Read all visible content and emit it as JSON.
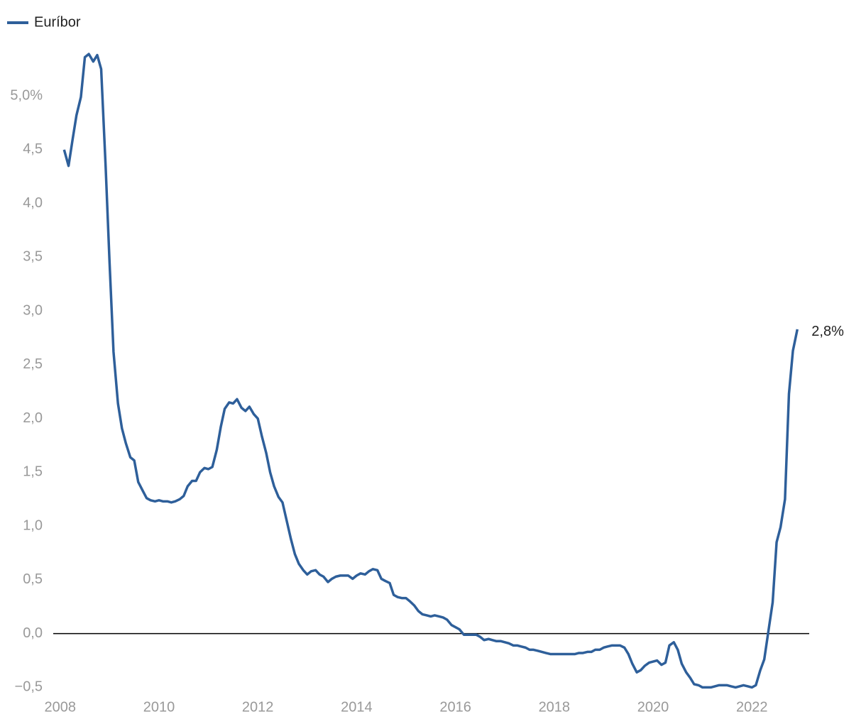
{
  "chart_data": {
    "type": "line",
    "x": [
      2008.08,
      2008.17,
      2008.25,
      2008.33,
      2008.42,
      2008.5,
      2008.58,
      2008.67,
      2008.75,
      2008.83,
      2008.92,
      2009,
      2009.08,
      2009.17,
      2009.25,
      2009.33,
      2009.42,
      2009.5,
      2009.58,
      2009.67,
      2009.75,
      2009.83,
      2009.92,
      2010,
      2010.08,
      2010.17,
      2010.25,
      2010.33,
      2010.42,
      2010.5,
      2010.58,
      2010.67,
      2010.75,
      2010.83,
      2010.92,
      2011,
      2011.08,
      2011.17,
      2011.25,
      2011.33,
      2011.42,
      2011.5,
      2011.58,
      2011.67,
      2011.75,
      2011.83,
      2011.92,
      2012,
      2012.08,
      2012.17,
      2012.25,
      2012.33,
      2012.42,
      2012.5,
      2012.58,
      2012.67,
      2012.75,
      2012.83,
      2012.92,
      2013,
      2013.08,
      2013.17,
      2013.25,
      2013.33,
      2013.42,
      2013.5,
      2013.58,
      2013.67,
      2013.75,
      2013.83,
      2013.92,
      2014,
      2014.08,
      2014.17,
      2014.25,
      2014.33,
      2014.42,
      2014.5,
      2014.58,
      2014.67,
      2014.75,
      2014.83,
      2014.92,
      2015,
      2015.08,
      2015.17,
      2015.25,
      2015.33,
      2015.42,
      2015.5,
      2015.58,
      2015.67,
      2015.75,
      2015.83,
      2015.92,
      2016,
      2016.08,
      2016.17,
      2016.25,
      2016.33,
      2016.42,
      2016.5,
      2016.58,
      2016.67,
      2016.75,
      2016.83,
      2016.92,
      2017,
      2017.08,
      2017.17,
      2017.25,
      2017.33,
      2017.42,
      2017.5,
      2017.58,
      2017.67,
      2017.75,
      2017.83,
      2017.92,
      2018,
      2018.08,
      2018.17,
      2018.25,
      2018.33,
      2018.42,
      2018.5,
      2018.58,
      2018.67,
      2018.75,
      2018.83,
      2018.92,
      2019,
      2019.08,
      2019.17,
      2019.25,
      2019.33,
      2019.42,
      2019.5,
      2019.58,
      2019.67,
      2019.75,
      2019.83,
      2019.92,
      2020,
      2020.08,
      2020.17,
      2020.25,
      2020.33,
      2020.42,
      2020.5,
      2020.58,
      2020.67,
      2020.75,
      2020.83,
      2020.92,
      2021,
      2021.08,
      2021.17,
      2021.25,
      2021.33,
      2021.42,
      2021.5,
      2021.58,
      2021.67,
      2021.75,
      2021.83,
      2021.92,
      2022,
      2022.08,
      2022.17,
      2022.25,
      2022.33,
      2022.42,
      2022.5,
      2022.58,
      2022.67,
      2022.75,
      2022.83,
      2022.92
    ],
    "series": [
      {
        "name": "Euríbor",
        "color": "#2e5f9a",
        "values": [
          4.5,
          4.35,
          4.59,
          4.82,
          4.99,
          5.36,
          5.39,
          5.32,
          5.38,
          5.25,
          4.35,
          3.45,
          2.62,
          2.14,
          1.91,
          1.77,
          1.64,
          1.61,
          1.41,
          1.33,
          1.26,
          1.24,
          1.23,
          1.24,
          1.23,
          1.23,
          1.22,
          1.23,
          1.25,
          1.28,
          1.37,
          1.42,
          1.42,
          1.5,
          1.54,
          1.53,
          1.55,
          1.71,
          1.92,
          2.09,
          2.15,
          2.14,
          2.18,
          2.1,
          2.07,
          2.11,
          2.04,
          2.0,
          1.84,
          1.68,
          1.5,
          1.37,
          1.27,
          1.22,
          1.06,
          0.88,
          0.74,
          0.65,
          0.59,
          0.55,
          0.58,
          0.59,
          0.55,
          0.53,
          0.48,
          0.51,
          0.53,
          0.54,
          0.54,
          0.54,
          0.51,
          0.54,
          0.56,
          0.55,
          0.58,
          0.6,
          0.59,
          0.51,
          0.49,
          0.47,
          0.36,
          0.34,
          0.33,
          0.33,
          0.3,
          0.26,
          0.21,
          0.18,
          0.17,
          0.16,
          0.17,
          0.16,
          0.15,
          0.13,
          0.08,
          0.06,
          0.04,
          -0.01,
          -0.01,
          -0.01,
          -0.01,
          -0.03,
          -0.06,
          -0.05,
          -0.06,
          -0.07,
          -0.07,
          -0.08,
          -0.09,
          -0.11,
          -0.11,
          -0.12,
          -0.13,
          -0.15,
          -0.15,
          -0.16,
          -0.17,
          -0.18,
          -0.19,
          -0.19,
          -0.19,
          -0.19,
          -0.19,
          -0.19,
          -0.19,
          -0.18,
          -0.18,
          -0.17,
          -0.17,
          -0.15,
          -0.15,
          -0.13,
          -0.12,
          -0.11,
          -0.11,
          -0.11,
          -0.13,
          -0.19,
          -0.28,
          -0.36,
          -0.34,
          -0.3,
          -0.27,
          -0.26,
          -0.25,
          -0.29,
          -0.27,
          -0.11,
          -0.08,
          -0.15,
          -0.28,
          -0.36,
          -0.41,
          -0.47,
          -0.48,
          -0.5,
          -0.5,
          -0.5,
          -0.49,
          -0.48,
          -0.48,
          -0.48,
          -0.49,
          -0.5,
          -0.49,
          -0.48,
          -0.49,
          -0.5,
          -0.48,
          -0.34,
          -0.24,
          0.01,
          0.29,
          0.85,
          0.99,
          1.25,
          2.23,
          2.63,
          2.83
        ]
      }
    ],
    "end_label": "2,8%",
    "xlim": [
      2007.86,
      2023.16
    ],
    "xticks": [
      2008,
      2010,
      2012,
      2014,
      2016,
      2018,
      2020,
      2022
    ],
    "ylim": [
      -0.55,
      5.45
    ],
    "yticks": [
      {
        "value": -0.5,
        "label": "−0,5"
      },
      {
        "value": 0,
        "label": "0,0"
      },
      {
        "value": 0.5,
        "label": "0,5"
      },
      {
        "value": 1,
        "label": "1,0"
      },
      {
        "value": 1.5,
        "label": "1,5"
      },
      {
        "value": 2,
        "label": "2,0"
      },
      {
        "value": 2.5,
        "label": "2,5"
      },
      {
        "value": 3,
        "label": "3,0"
      },
      {
        "value": 3.5,
        "label": "3,5"
      },
      {
        "value": 4,
        "label": "4,0"
      },
      {
        "value": 4.5,
        "label": "4,5"
      },
      {
        "value": 5,
        "label": "5,0%"
      }
    ]
  }
}
